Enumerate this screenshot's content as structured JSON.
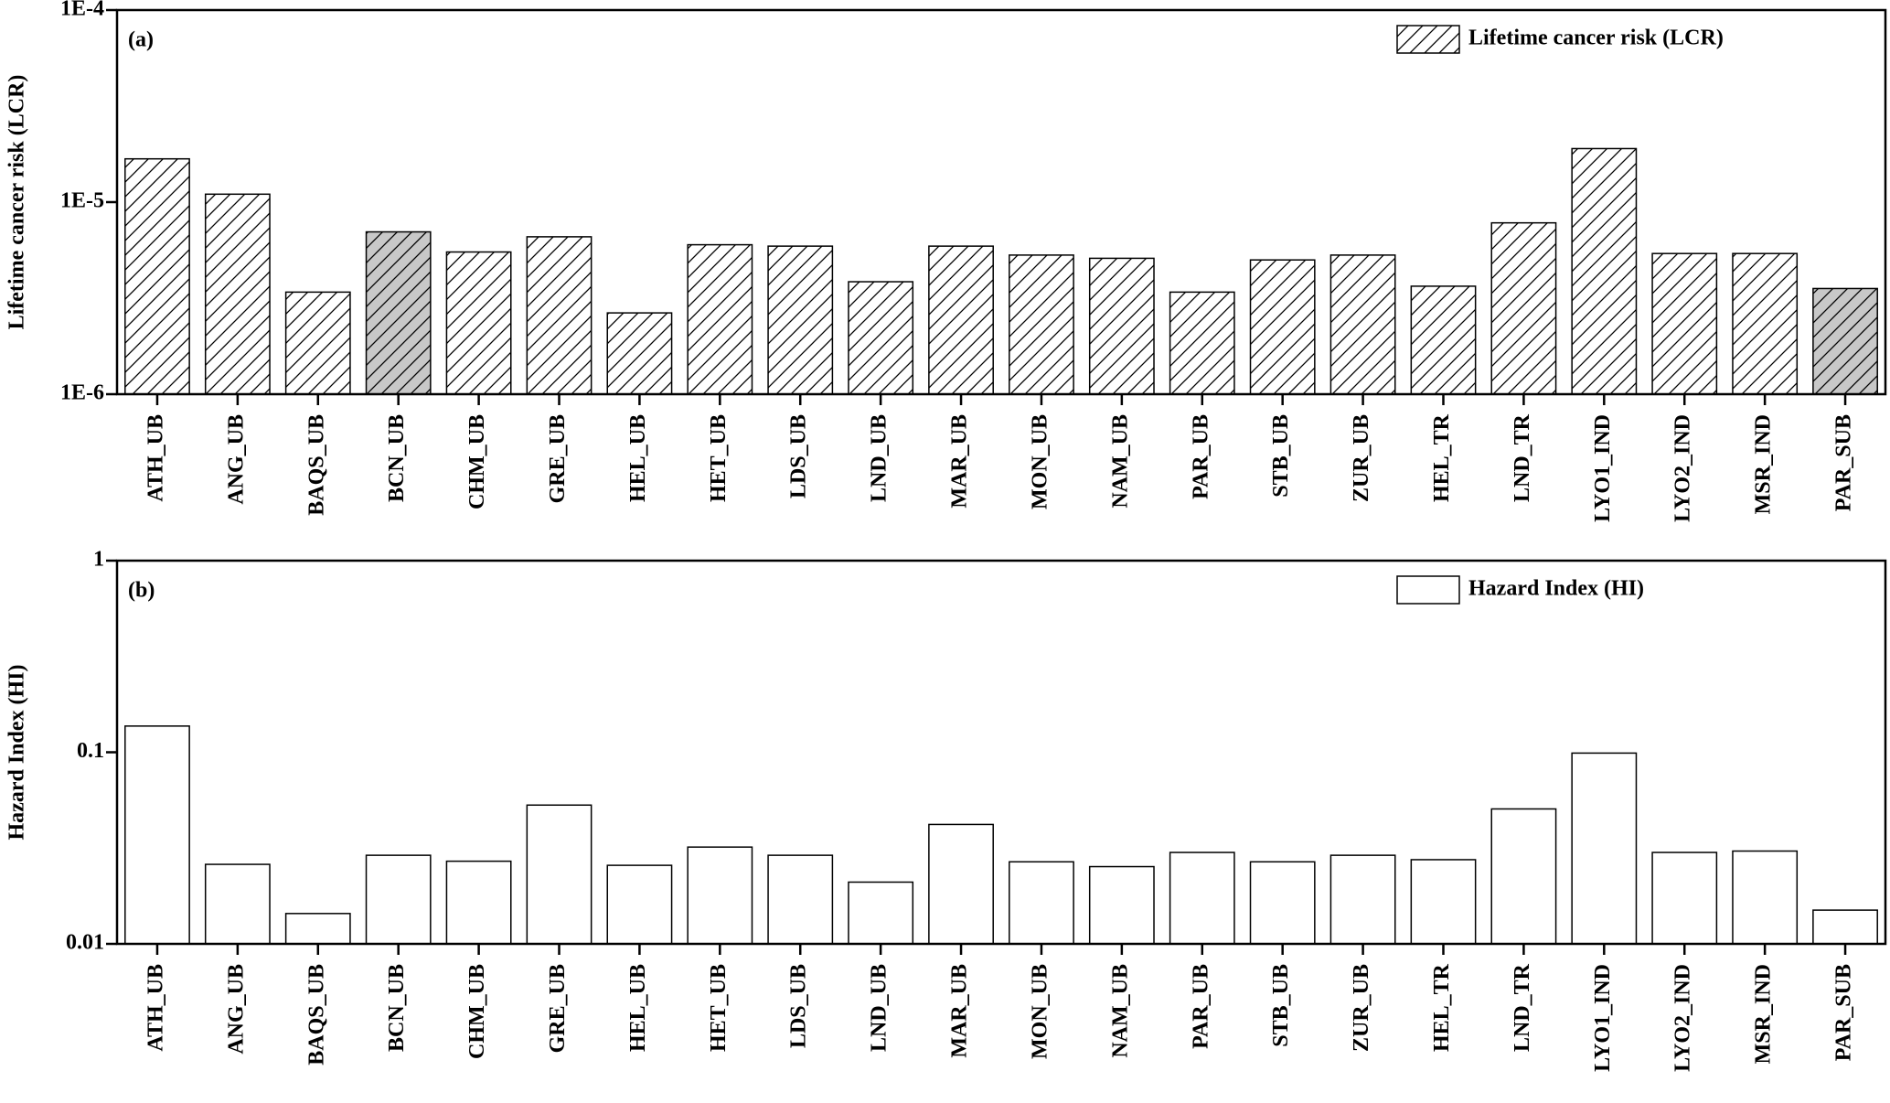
{
  "chart_data": [
    {
      "type": "bar",
      "panel_label": "(a)",
      "ylabel": "Lifetime cancer risk (LCR)",
      "categories": [
        "ATH_UB",
        "ANG_UB",
        "BAQS_UB",
        "BCN_UB",
        "CHM_UB",
        "GRE_UB",
        "HEL_UB",
        "HET_UB",
        "LDS_UB",
        "LND_UB",
        "MAR_UB",
        "MON_UB",
        "NAM_UB",
        "PAR_UB",
        "STB_UB",
        "ZUR_UB",
        "HEL_TR",
        "LND_TR",
        "LYO1_IND",
        "LYO2_IND",
        "MSR_IND",
        "PAR_SUB"
      ],
      "series": [
        {
          "name": "Lifetime cancer risk (LCR)",
          "values": [
            1.68e-05,
            1.1e-05,
            3.4e-06,
            7e-06,
            5.5e-06,
            6.6e-06,
            2.65e-06,
            6e-06,
            5.9e-06,
            3.85e-06,
            5.9e-06,
            5.3e-06,
            5.1e-06,
            3.4e-06,
            5e-06,
            5.3e-06,
            3.65e-06,
            7.8e-06,
            1.9e-05,
            5.4e-06,
            5.4e-06,
            3.55e-06
          ],
          "colors": [
            "#ffffff",
            "#ffffff",
            "#ffffff",
            "#c8c8c8",
            "#ffffff",
            "#ffffff",
            "#ffffff",
            "#ffffff",
            "#ffffff",
            "#ffffff",
            "#ffffff",
            "#ffffff",
            "#ffffff",
            "#ffffff",
            "#ffffff",
            "#ffffff",
            "#ffffff",
            "#ffffff",
            "#ffffff",
            "#ffffff",
            "#ffffff",
            "#c8c8c8"
          ]
        }
      ],
      "ylim": [
        1e-06,
        0.0001
      ],
      "yticks": [
        {
          "value": 1e-06,
          "label": "1E-6"
        },
        {
          "value": 1e-05,
          "label": "1E-5"
        },
        {
          "value": 0.0001,
          "label": "1E-4"
        }
      ],
      "log_scale": true,
      "hatch": true,
      "legend": "top-right"
    },
    {
      "type": "bar",
      "panel_label": "(b)",
      "ylabel": "Hazard Index (HI)",
      "categories": [
        "ATH_UB",
        "ANG_UB",
        "BAQS_UB",
        "BCN_UB",
        "CHM_UB",
        "GRE_UB",
        "HEL_UB",
        "HET_UB",
        "LDS_UB",
        "LND_UB",
        "MAR_UB",
        "MON_UB",
        "NAM_UB",
        "PAR_UB",
        "STB_UB",
        "ZUR_UB",
        "HEL_TR",
        "LND_TR",
        "LYO1_IND",
        "LYO2_IND",
        "MSR_IND",
        "PAR_SUB"
      ],
      "series": [
        {
          "name": "Hazard Index (HI)",
          "values": [
            0.137,
            0.026,
            0.0144,
            0.029,
            0.027,
            0.053,
            0.0257,
            0.032,
            0.029,
            0.021,
            0.042,
            0.0268,
            0.0253,
            0.03,
            0.0268,
            0.029,
            0.0275,
            0.0506,
            0.099,
            0.03,
            0.0305,
            0.015
          ],
          "colors": [
            "#ffffff",
            "#ffffff",
            "#ffffff",
            "#ffffff",
            "#ffffff",
            "#ffffff",
            "#ffffff",
            "#ffffff",
            "#ffffff",
            "#ffffff",
            "#ffffff",
            "#ffffff",
            "#ffffff",
            "#ffffff",
            "#ffffff",
            "#ffffff",
            "#ffffff",
            "#ffffff",
            "#ffffff",
            "#ffffff",
            "#ffffff",
            "#ffffff"
          ]
        }
      ],
      "ylim": [
        0.01,
        1
      ],
      "yticks": [
        0.01,
        0.1,
        1
      ],
      "log_scale": true,
      "hatch": false,
      "legend": "top-right"
    }
  ]
}
